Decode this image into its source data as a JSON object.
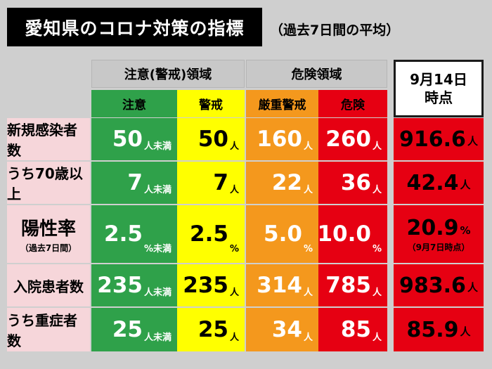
{
  "title": "愛知県のコロナ対策の指標",
  "subtitle": "（過去7日間の平均）",
  "groups": {
    "caution_area": "注意(警戒)領域",
    "danger_area": "危険領域"
  },
  "columns": {
    "caution": "注意",
    "alert": "警戒",
    "severe_alert": "厳重警戒",
    "danger": "危険"
  },
  "current_header": {
    "line1": "9月14日",
    "line2": "時点"
  },
  "rows": [
    {
      "label": "新規感染者数",
      "sublabel": "",
      "caution": {
        "num": "50",
        "unit": "人未満"
      },
      "alert": {
        "num": "50",
        "unit": "人"
      },
      "severe_alert": {
        "num": "160",
        "unit": "人"
      },
      "danger": {
        "num": "260",
        "unit": "人"
      },
      "current": {
        "num": "916.6",
        "unit": "人",
        "note": ""
      }
    },
    {
      "label": "うち70歳以上",
      "sublabel": "",
      "caution": {
        "num": "7",
        "unit": "人未満"
      },
      "alert": {
        "num": "7",
        "unit": "人"
      },
      "severe_alert": {
        "num": "22",
        "unit": "人"
      },
      "danger": {
        "num": "36",
        "unit": "人"
      },
      "current": {
        "num": "42.4",
        "unit": "人",
        "note": ""
      }
    },
    {
      "label": "陽性率",
      "sublabel": "（過去7日間）",
      "caution": {
        "num": "2.5",
        "unit": "%未満"
      },
      "alert": {
        "num": "2.5",
        "unit": "%"
      },
      "severe_alert": {
        "num": "5.0",
        "unit": "%"
      },
      "danger": {
        "num": "10.0",
        "unit": "%"
      },
      "current": {
        "num": "20.9",
        "unit": "%",
        "note": "（9月7日時点）"
      }
    },
    {
      "label": "入院患者数",
      "sublabel": "",
      "caution": {
        "num": "235",
        "unit": "人未満"
      },
      "alert": {
        "num": "235",
        "unit": "人"
      },
      "severe_alert": {
        "num": "314",
        "unit": "人"
      },
      "danger": {
        "num": "785",
        "unit": "人"
      },
      "current": {
        "num": "983.6",
        "unit": "人",
        "note": ""
      }
    },
    {
      "label": "うち重症者数",
      "sublabel": "",
      "caution": {
        "num": "25",
        "unit": "人未満"
      },
      "alert": {
        "num": "25",
        "unit": "人"
      },
      "severe_alert": {
        "num": "34",
        "unit": "人"
      },
      "danger": {
        "num": "85",
        "unit": "人"
      },
      "current": {
        "num": "85.9",
        "unit": "人",
        "note": ""
      }
    }
  ],
  "colors": {
    "caution": "#2fa14a",
    "alert": "#ffff00",
    "severe_alert": "#f4981d",
    "danger": "#e60012",
    "row_header": "#f6d6da"
  }
}
